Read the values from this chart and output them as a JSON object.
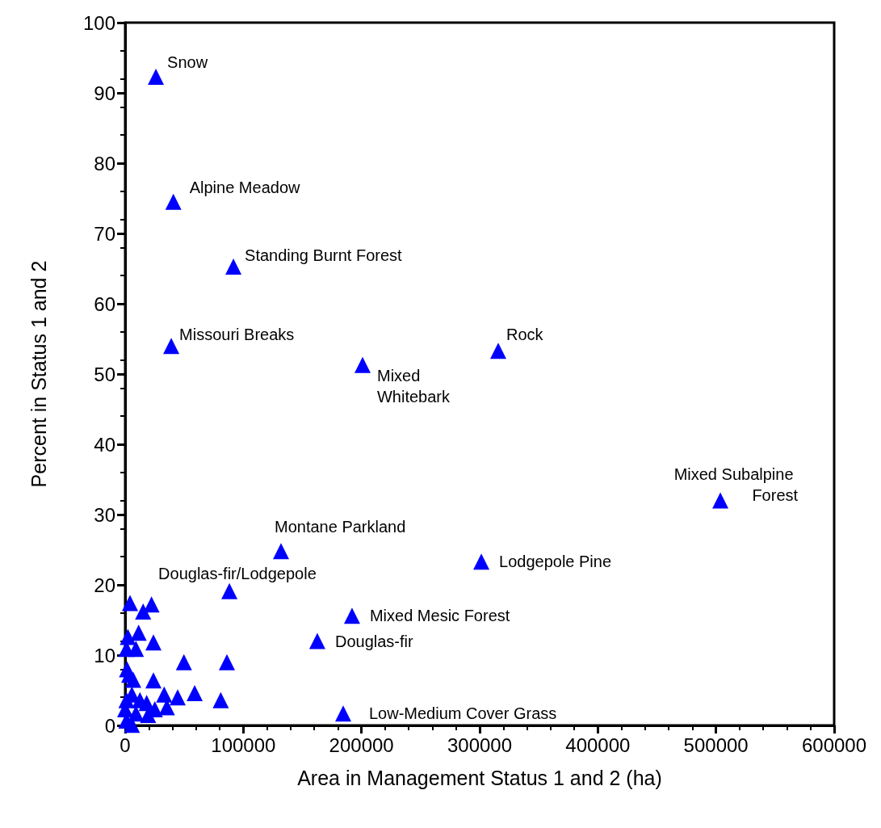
{
  "chart_data": {
    "type": "scatter",
    "xlabel": "Area in Management Status 1 and 2 (ha)",
    "ylabel": "Percent in Status 1 and 2",
    "marker": "triangle",
    "grid": false,
    "xlim": [
      0,
      600000
    ],
    "xticks": [
      0,
      100000,
      200000,
      300000,
      400000,
      500000,
      600000
    ],
    "ylim": [
      0,
      100
    ],
    "yticks": [
      0,
      10,
      20,
      30,
      40,
      50,
      60,
      70,
      80,
      90,
      100
    ],
    "series": [
      {
        "color": "#0000ff",
        "x": [
          26000,
          40800,
          91600,
          39000,
          200900,
          315700,
          503700,
          301400,
          131900,
          88200,
          192000,
          162600,
          184500,
          4100,
          22300,
          15200,
          11400,
          2300,
          23900,
          9100,
          1100,
          49700,
          86100,
          1600,
          6800,
          23900,
          3400,
          58800,
          44400,
          33000,
          80900,
          5700,
          12500,
          18200,
          35300,
          25100,
          19400,
          1100,
          9100,
          1100,
          5700,
          0
        ],
        "values": [
          92.3,
          74.5,
          65.3,
          54.0,
          51.3,
          53.3,
          32.0,
          23.3,
          24.8,
          19.1,
          15.6,
          12.0,
          1.7,
          17.4,
          17.2,
          16.2,
          13.2,
          12.6,
          11.8,
          10.9,
          10.9,
          9.0,
          9.0,
          8.0,
          6.5,
          6.4,
          7.2,
          4.6,
          4.0,
          4.4,
          3.6,
          4.4,
          3.6,
          3.2,
          2.6,
          2.3,
          1.5,
          3.6,
          1.7,
          0.7,
          0.1,
          2.3
        ]
      }
    ],
    "annotations": [
      {
        "text": "Snow",
        "x": 26000,
        "y": 92.3
      },
      {
        "text": "Alpine Meadow",
        "x": 40800,
        "y": 74.5
      },
      {
        "text": "Standing Burnt Forest",
        "x": 91600,
        "y": 65.3
      },
      {
        "text": "Missouri Breaks",
        "x": 39000,
        "y": 54.0
      },
      {
        "text": "Mixed Whitebark",
        "x": 200900,
        "y": 51.3
      },
      {
        "text": "Rock",
        "x": 315700,
        "y": 53.3
      },
      {
        "text": "Mixed Subalpine Forest",
        "x": 503700,
        "y": 32.0
      },
      {
        "text": "Lodgepole Pine",
        "x": 301400,
        "y": 23.3
      },
      {
        "text": "Montane Parkland",
        "x": 131900,
        "y": 24.8
      },
      {
        "text": "Douglas-fir/Lodgepole",
        "x": 88200,
        "y": 19.1
      },
      {
        "text": "Mixed Mesic Forest",
        "x": 192000,
        "y": 15.6
      },
      {
        "text": "Douglas-fir",
        "x": 162600,
        "y": 12.0
      },
      {
        "text": "Low-Medium Cover Grass",
        "x": 184500,
        "y": 1.7
      }
    ]
  }
}
